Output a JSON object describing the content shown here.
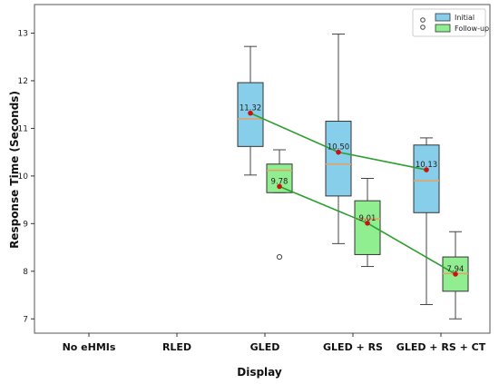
{
  "chart_data": {
    "type": "box",
    "title": "",
    "xlabel": "Display",
    "ylabel": "Response Time (Seconds)",
    "categories": [
      "No eHMIs",
      "RLED",
      "GLED",
      "GLED + RS",
      "GLED + RS + CT"
    ],
    "ylim": [
      6.7,
      13.6
    ],
    "yticks": [
      7,
      8,
      9,
      10,
      11,
      12,
      13
    ],
    "grid": false,
    "legend": {
      "position": "top-right",
      "entries": [
        "Initial",
        "Follow-up"
      ]
    },
    "series": [
      {
        "name": "Initial",
        "color": "#87ceeb",
        "median_color": "#e8a060",
        "boxes": [
          {
            "category": "GLED",
            "whisker_low": 10.02,
            "q1": 10.62,
            "median": 11.2,
            "q3": 11.96,
            "whisker_high": 12.72,
            "mean": 11.32,
            "outliers": []
          },
          {
            "category": "GLED + RS",
            "whisker_low": 8.58,
            "q1": 9.58,
            "median": 10.25,
            "q3": 11.15,
            "whisker_high": 12.98,
            "mean": 10.5,
            "outliers": []
          },
          {
            "category": "GLED + RS + CT",
            "whisker_low": 7.3,
            "q1": 9.23,
            "median": 9.9,
            "q3": 10.65,
            "whisker_high": 10.8,
            "mean": 10.13,
            "outliers": []
          }
        ],
        "mean_labels": [
          "11.32",
          "10.50",
          "10.13"
        ]
      },
      {
        "name": "Follow-up",
        "color": "#90ee90",
        "median_color": "#e8a060",
        "boxes": [
          {
            "category": "GLED",
            "whisker_low": 9.65,
            "q1": 9.65,
            "median": 10.12,
            "q3": 10.25,
            "whisker_high": 10.55,
            "mean": 9.78,
            "outliers": [
              8.3
            ]
          },
          {
            "category": "GLED + RS",
            "whisker_low": 8.1,
            "q1": 8.35,
            "median": 9.1,
            "q3": 9.48,
            "whisker_high": 9.95,
            "mean": 9.01,
            "outliers": []
          },
          {
            "category": "GLED + RS + CT",
            "whisker_low": 7.0,
            "q1": 7.58,
            "median": 7.95,
            "q3": 8.3,
            "whisker_high": 8.83,
            "mean": 7.94,
            "outliers": []
          }
        ],
        "mean_labels": [
          "9.78",
          "9.01",
          "7.94"
        ]
      }
    ],
    "mean_line_color": "#2e9e2e",
    "mean_marker_color": "#cc1111",
    "frame_color": "#555555"
  }
}
